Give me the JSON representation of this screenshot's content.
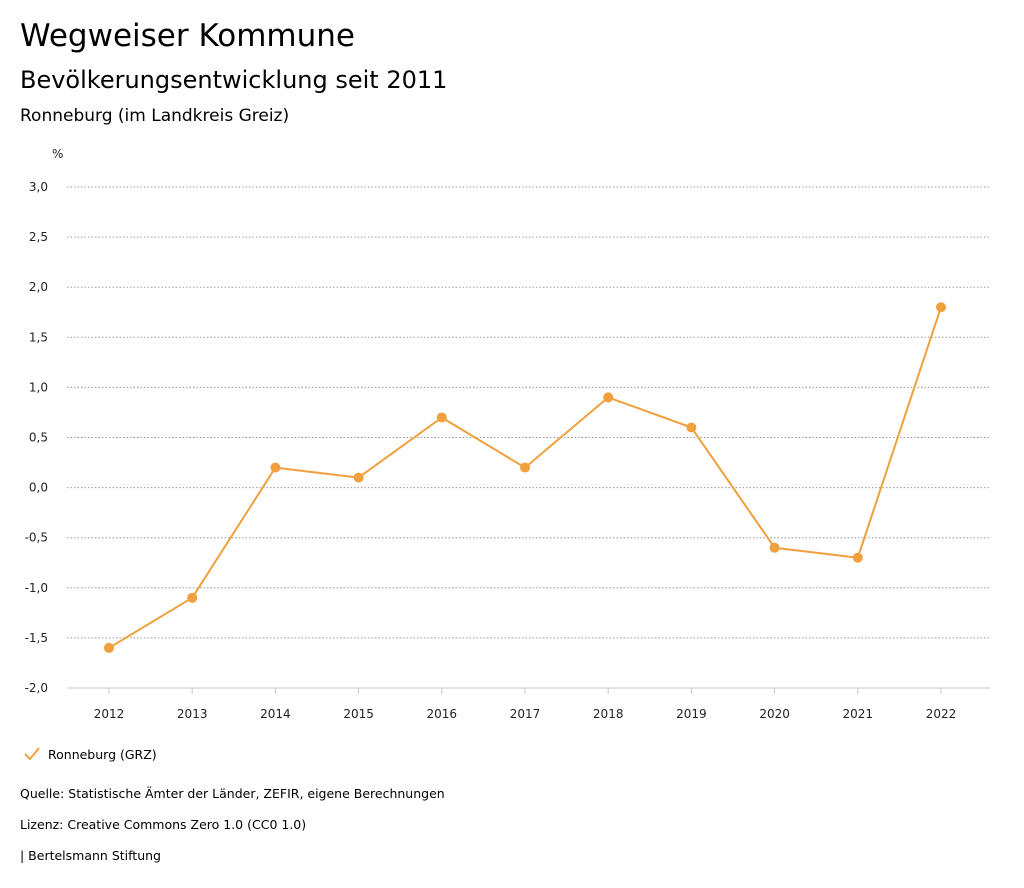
{
  "header": {
    "title": "Wegweiser Kommune",
    "subtitle": "Bevölkerungsentwicklung seit 2011",
    "location": "Ronneburg (im Landkreis Greiz)"
  },
  "chart_data": {
    "type": "line",
    "unit_label": "%",
    "x": [
      "2012",
      "2013",
      "2014",
      "2015",
      "2016",
      "2017",
      "2018",
      "2019",
      "2020",
      "2021",
      "2022"
    ],
    "series": [
      {
        "name": "Ronneburg (GRZ)",
        "color": "#f0a03c",
        "values": [
          -1.6,
          -1.1,
          0.2,
          0.1,
          0.7,
          0.2,
          0.9,
          0.6,
          -0.6,
          -0.7,
          1.8
        ]
      }
    ],
    "ylim": [
      -2.0,
      3.0
    ],
    "yticks": [
      3.0,
      2.5,
      2.0,
      1.5,
      1.0,
      0.5,
      0.0,
      -0.5,
      -1.0,
      -1.5,
      -2.0
    ],
    "ytick_labels": [
      "3,0",
      "2,5",
      "2,0",
      "1,5",
      "1,0",
      "0,5",
      "0,0",
      "-0,5",
      "-1,0",
      "-1,5",
      "-2,0"
    ],
    "grid": true,
    "legend_position": "bottom-left"
  },
  "legend": {
    "label": "Ronneburg (GRZ)",
    "icon": "check-icon"
  },
  "footer": {
    "source": "Quelle: Statistische Ämter der Länder, ZEFIR, eigene Berechnungen",
    "license": "Lizenz: Creative Commons Zero 1.0 (CC0 1.0)",
    "publisher": "| Bertelsmann Stiftung"
  }
}
